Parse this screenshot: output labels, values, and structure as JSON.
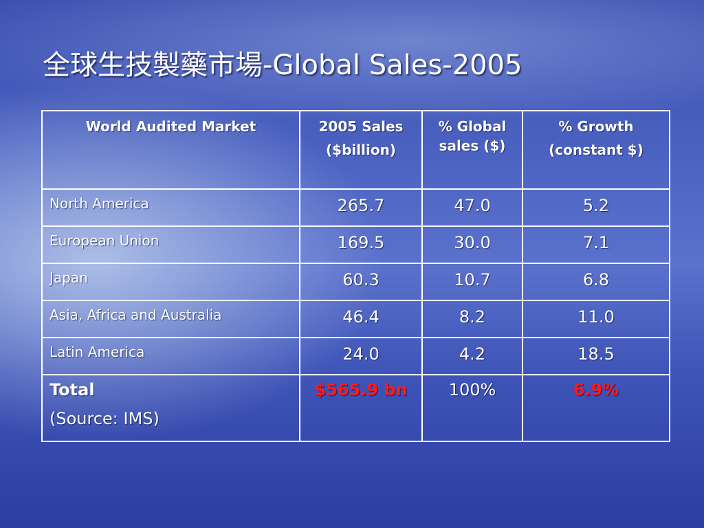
{
  "title": "全球生技製藥市場-Global Sales-2005",
  "table": {
    "header": [
      [
        "World Audited Market"
      ],
      [
        "2005 Sales",
        "($billion)"
      ],
      [
        "% Global sales ($)"
      ],
      [
        "% Growth",
        "(constant $)"
      ]
    ],
    "rows": [
      [
        "North America",
        "265.7",
        "47.0",
        "5.2"
      ],
      [
        "European Union",
        "169.5",
        "30.0",
        "7.1"
      ],
      [
        "Japan",
        "60.3",
        "10.7",
        "6.8"
      ],
      [
        "Asia, Africa and Australia",
        "46.4",
        "8.2",
        "11.0"
      ],
      [
        "Latin America",
        "24.0",
        "4.2",
        "18.5"
      ]
    ],
    "total": [
      [
        "Total",
        "(Source: IMS)"
      ],
      "$565.9 bn",
      "100%",
      "6.9%"
    ]
  }
}
